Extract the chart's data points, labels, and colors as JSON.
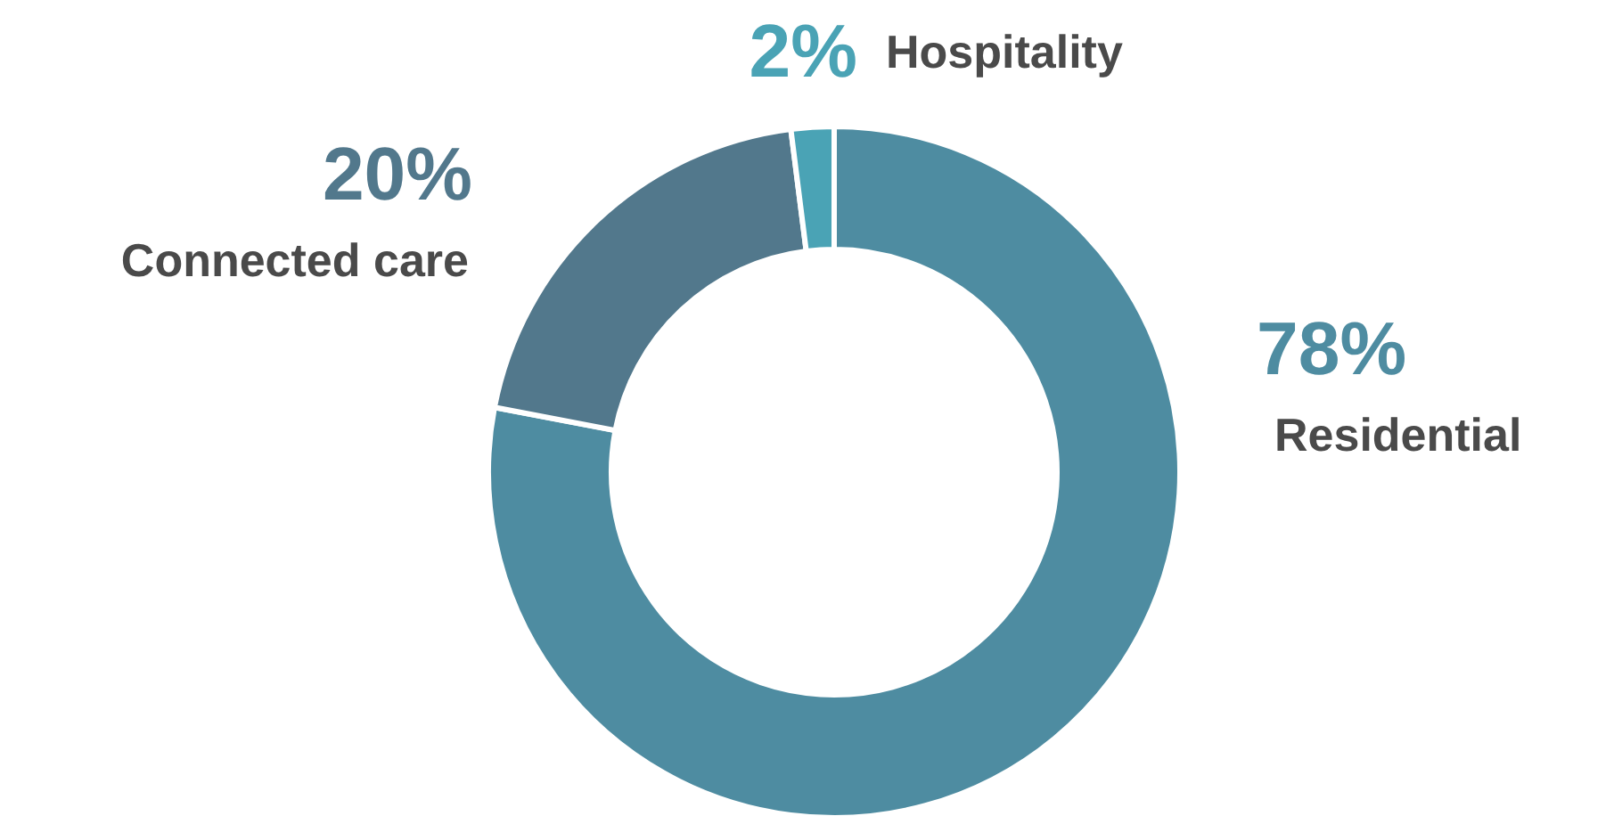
{
  "chart_data": {
    "type": "donut",
    "categories": [
      "Residential",
      "Connected care",
      "Hospitality"
    ],
    "values": [
      78,
      20,
      2
    ],
    "colors": [
      "#4e8ca1",
      "#52788c",
      "#4aa3b5"
    ],
    "value_labels": [
      "78%",
      "20%",
      "2%"
    ]
  }
}
